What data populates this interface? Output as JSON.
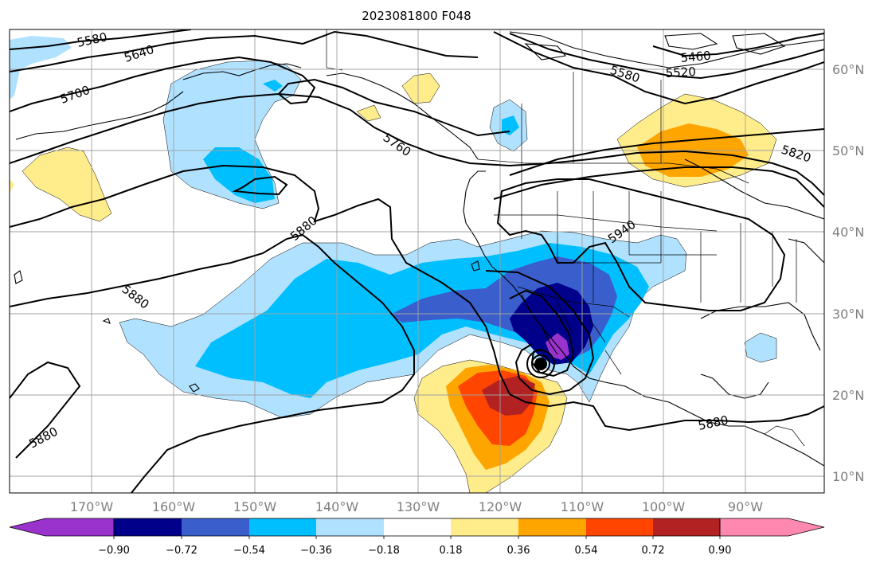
{
  "title": "2023081800 F048",
  "map": {
    "lon_labels": [
      "170°W",
      "160°W",
      "150°W",
      "140°W",
      "130°W",
      "120°W",
      "110°W",
      "100°W",
      "90°W"
    ],
    "lat_labels": [
      "60°N",
      "50°N",
      "40°N",
      "30°N",
      "20°N",
      "10°N"
    ],
    "contour_labels": [
      "5580",
      "5640",
      "5700",
      "5760",
      "5880",
      "5880",
      "5880",
      "5940",
      "5580",
      "5520",
      "5460",
      "5820",
      "5880"
    ]
  },
  "colorbar": {
    "tick_labels": [
      "−0.90",
      "−0.72",
      "−0.54",
      "−0.36",
      "−0.18",
      "0.18",
      "0.36",
      "0.54",
      "0.72",
      "0.90"
    ],
    "colors": [
      "#9a32cd",
      "#00008b",
      "#3a5fcd",
      "#00bfff",
      "#b0e2ff",
      "#ffffff",
      "#ffec8b",
      "#ffa500",
      "#ff4500",
      "#b22222",
      "#ff88b0"
    ]
  }
}
